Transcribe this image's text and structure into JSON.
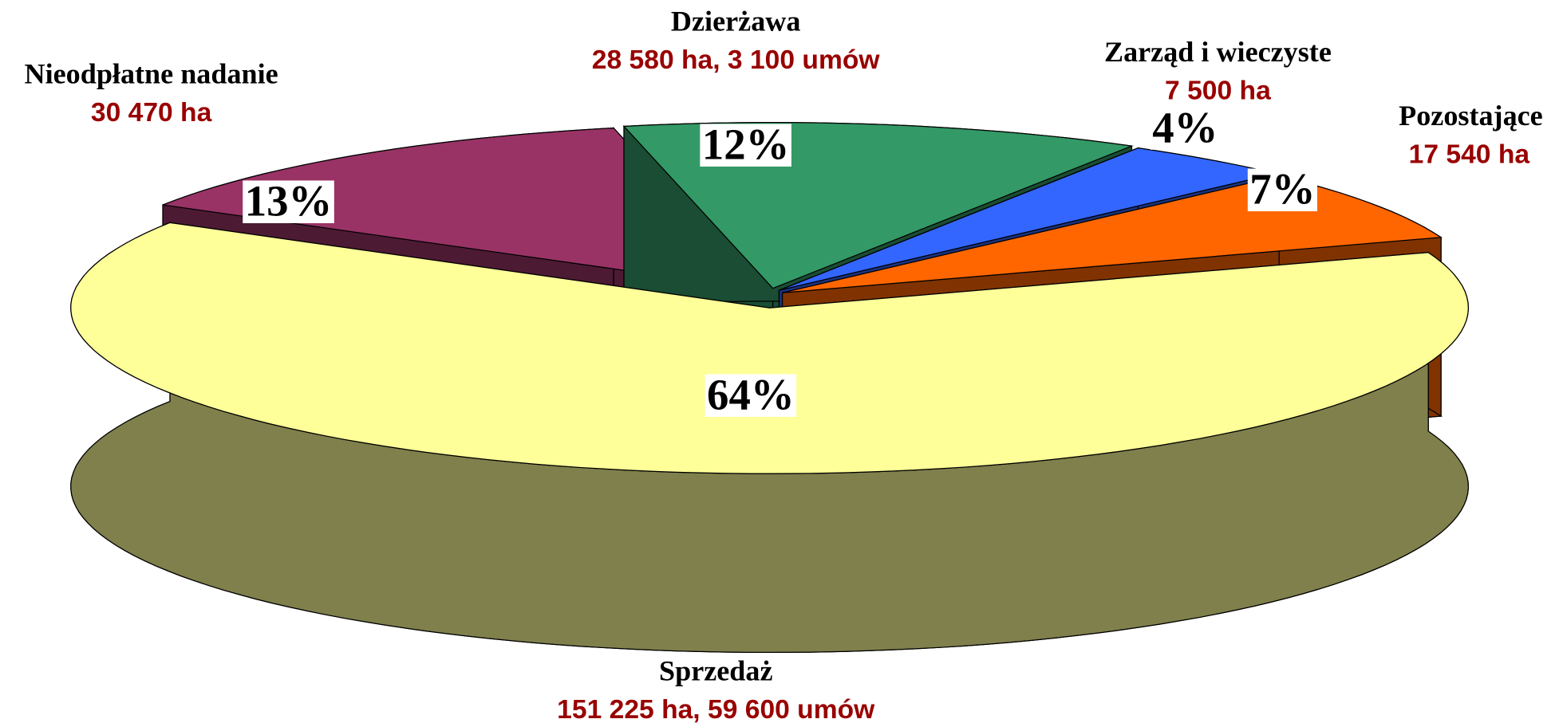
{
  "chart_data": {
    "type": "pie3d",
    "categories": [
      "Sprzedaż",
      "Nieodpłatne nadanie",
      "Dzierżawa",
      "Zarząd i wieczyste",
      "Pozostające"
    ],
    "values": [
      64,
      13,
      12,
      4,
      7
    ],
    "value_labels": [
      "64%",
      "13%",
      "12%",
      "4%",
      "7%"
    ],
    "details": [
      "151 225  ha, 59 600 umów",
      "30 470 ha",
      "28 580 ha, 3 100 umów",
      "7 500 ha",
      "17 540 ha"
    ],
    "colors": [
      "#FFFF99",
      "#993366",
      "#339966",
      "#3366FF",
      "#FF6600"
    ],
    "side_colors": [
      "#80804D",
      "#4D1A33",
      "#1A4D33",
      "#1A3380",
      "#803300"
    ]
  }
}
